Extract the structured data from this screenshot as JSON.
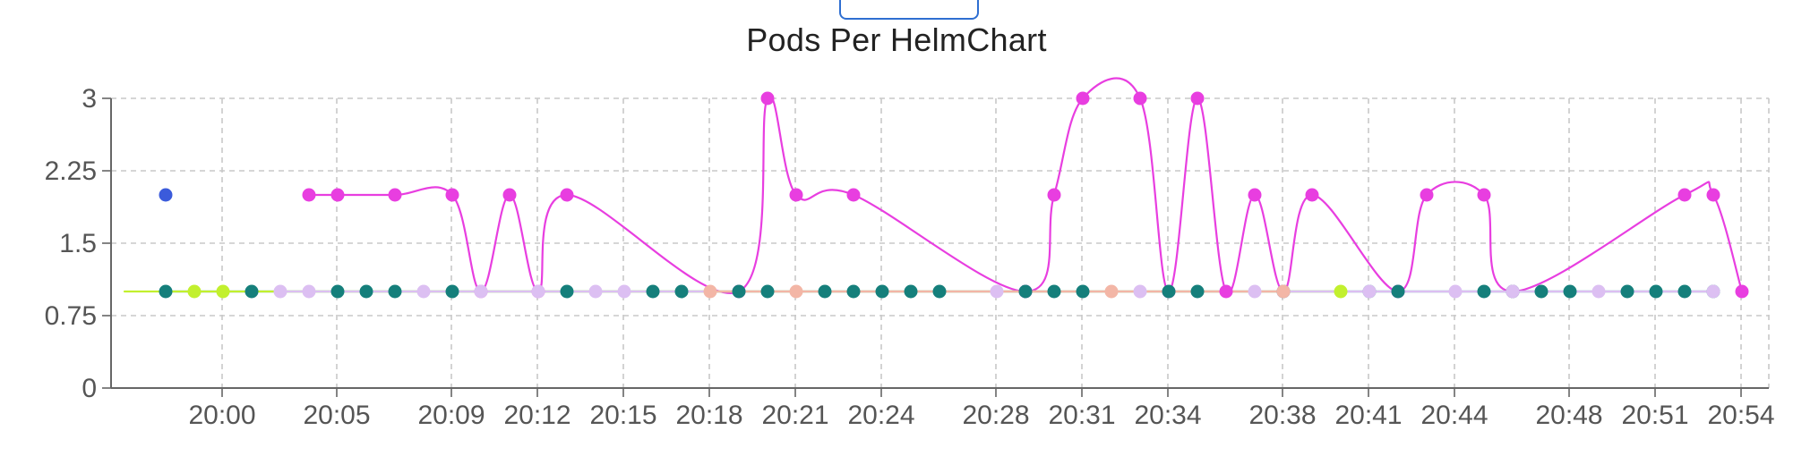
{
  "header": {
    "tab_label": ""
  },
  "chart_data": {
    "type": "line",
    "title": "Pods Per HelmChart",
    "xlabel": "",
    "ylabel": "",
    "ylim": [
      0,
      3
    ],
    "yticks": [
      0,
      0.75,
      1.5,
      2.25,
      3
    ],
    "ytick_labels": [
      "0",
      "0.75",
      "1.5",
      "2.25",
      "3"
    ],
    "x_minutes": [
      "19:59",
      "20:00",
      "20:01",
      "20:02",
      "20:03",
      "20:04",
      "20:05",
      "20:06",
      "20:07",
      "20:08",
      "20:09",
      "20:10",
      "20:11",
      "20:12",
      "20:13",
      "20:14",
      "20:15",
      "20:16",
      "20:17",
      "20:18",
      "20:19",
      "20:20",
      "20:21",
      "20:22",
      "20:23",
      "20:24",
      "20:25",
      "20:26",
      "20:27",
      "20:28",
      "20:29",
      "20:30",
      "20:31",
      "20:32",
      "20:33",
      "20:34",
      "20:35",
      "20:36",
      "20:37",
      "20:38",
      "20:39",
      "20:40",
      "20:41",
      "20:42",
      "20:43",
      "20:44",
      "20:45",
      "20:46",
      "20:47",
      "20:48",
      "20:49",
      "20:50",
      "20:51",
      "20:52",
      "20:53",
      "20:54"
    ],
    "xtick_labels": [
      "20:00",
      "20:05",
      "20:09",
      "20:12",
      "20:15",
      "20:18",
      "20:21",
      "20:24",
      "20:28",
      "20:31",
      "20:34",
      "20:38",
      "20:41",
      "20:44",
      "20:48",
      "20:51",
      "20:54"
    ],
    "xtick_positions_minutes": [
      "20:00",
      "20:04",
      "20:08",
      "20:11",
      "20:14",
      "20:17",
      "20:20",
      "20:23",
      "20:27",
      "20:30",
      "20:33",
      "20:37",
      "20:40",
      "20:43",
      "20:47",
      "20:50",
      "20:53"
    ],
    "grid": true,
    "series": [
      {
        "color": "#3b5bdb",
        "points": [
          [
            "19:59",
            2
          ]
        ]
      },
      {
        "color": "#e83ee0",
        "points": [
          [
            "20:04",
            2
          ],
          [
            "20:05",
            2
          ],
          [
            "20:07",
            2
          ],
          [
            "20:09",
            2
          ],
          [
            "20:10",
            1
          ],
          [
            "20:11",
            2
          ],
          [
            "20:12",
            1
          ],
          [
            "20:13",
            2
          ],
          [
            "20:19",
            1
          ],
          [
            "20:20",
            3
          ],
          [
            "20:21",
            2
          ],
          [
            "20:23",
            2
          ],
          [
            "20:29",
            1
          ],
          [
            "20:30",
            2
          ],
          [
            "20:31",
            3
          ],
          [
            "20:33",
            3
          ],
          [
            "20:34",
            1
          ],
          [
            "20:35",
            3
          ],
          [
            "20:36",
            1
          ],
          [
            "20:37",
            2
          ],
          [
            "20:38",
            1
          ],
          [
            "20:39",
            2
          ],
          [
            "20:42",
            1
          ],
          [
            "20:43",
            2
          ],
          [
            "20:45",
            2
          ],
          [
            "20:46",
            1
          ],
          [
            "20:52",
            2
          ],
          [
            "20:53",
            2
          ],
          [
            "20:54",
            1
          ]
        ]
      },
      {
        "color": "#157f7b",
        "points": [
          [
            "19:59",
            1
          ],
          [
            "20:02",
            1
          ],
          [
            "20:05",
            1
          ],
          [
            "20:06",
            1
          ],
          [
            "20:07",
            1
          ],
          [
            "20:09",
            1
          ],
          [
            "20:13",
            1
          ],
          [
            "20:16",
            1
          ],
          [
            "20:17",
            1
          ],
          [
            "20:19",
            1
          ],
          [
            "20:20",
            1
          ],
          [
            "20:22",
            1
          ],
          [
            "20:23",
            1
          ],
          [
            "20:24",
            1
          ],
          [
            "20:25",
            1
          ],
          [
            "20:26",
            1
          ],
          [
            "20:29",
            1
          ],
          [
            "20:30",
            1
          ],
          [
            "20:31",
            1
          ],
          [
            "20:34",
            1
          ],
          [
            "20:35",
            1
          ],
          [
            "20:38",
            1
          ],
          [
            "20:41",
            1
          ],
          [
            "20:42",
            1
          ],
          [
            "20:45",
            1
          ],
          [
            "20:46",
            1
          ],
          [
            "20:47",
            1
          ],
          [
            "20:48",
            1
          ],
          [
            "20:50",
            1
          ],
          [
            "20:51",
            1
          ],
          [
            "20:52",
            1
          ],
          [
            "20:53",
            1
          ]
        ]
      },
      {
        "color": "#c2f02e",
        "points": [
          [
            "20:00",
            1
          ],
          [
            "20:01",
            1
          ],
          [
            "20:40",
            1
          ]
        ]
      },
      {
        "color": "#dcbff2",
        "points": [
          [
            "20:03",
            1
          ],
          [
            "20:04",
            1
          ],
          [
            "20:08",
            1
          ],
          [
            "20:10",
            1
          ],
          [
            "20:12",
            1
          ],
          [
            "20:14",
            1
          ],
          [
            "20:15",
            1
          ],
          [
            "20:28",
            1
          ],
          [
            "20:33",
            1
          ],
          [
            "20:37",
            1
          ],
          [
            "20:41",
            1
          ],
          [
            "20:44",
            1
          ],
          [
            "20:46",
            1
          ],
          [
            "20:49",
            1
          ],
          [
            "20:53",
            1
          ]
        ]
      },
      {
        "color": "#f3b6a6",
        "points": [
          [
            "20:18",
            1
          ],
          [
            "20:21",
            1
          ],
          [
            "20:32",
            1
          ],
          [
            "20:38",
            1
          ]
        ]
      }
    ]
  }
}
